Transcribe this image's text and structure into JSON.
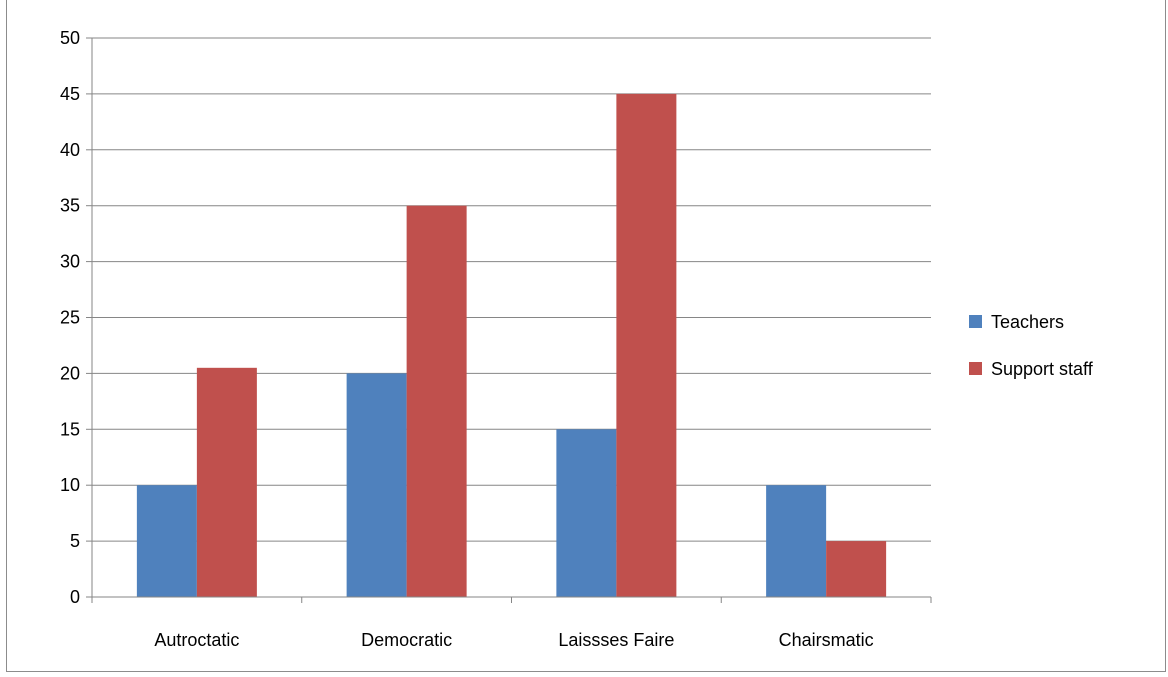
{
  "chart_data": {
    "type": "bar",
    "title": "",
    "xlabel": "",
    "ylabel": "",
    "categories": [
      "Autroctatic",
      "Democratic",
      "Laissses Faire",
      "Chairsmatic"
    ],
    "series": [
      {
        "name": "Teachers",
        "color": "#4f81bd",
        "values": [
          10,
          20,
          15,
          10
        ]
      },
      {
        "name": "Support staff",
        "color": "#c0504d",
        "values": [
          20.5,
          35,
          45,
          5
        ]
      }
    ],
    "ylim": [
      0,
      50
    ],
    "yticks": [
      0,
      5,
      10,
      15,
      20,
      25,
      30,
      35,
      40,
      45,
      50
    ],
    "grid": true,
    "legend": "right"
  }
}
